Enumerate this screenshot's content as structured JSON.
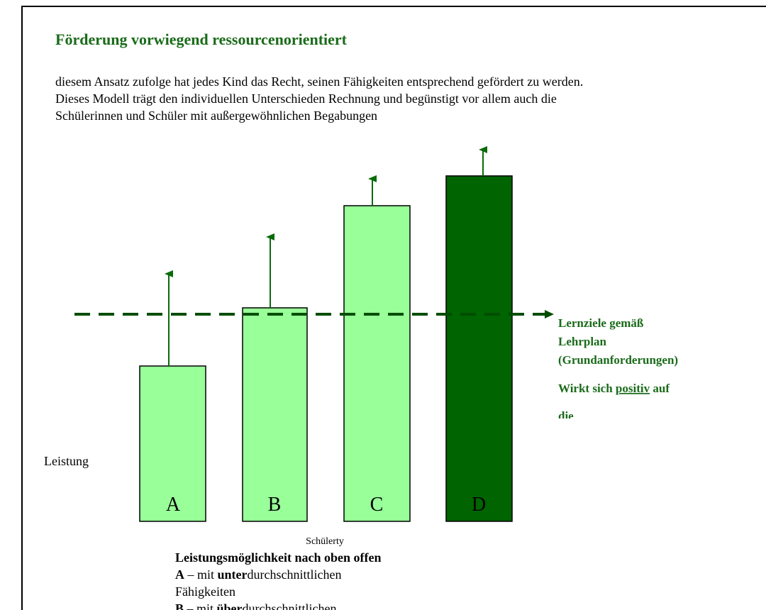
{
  "header": {
    "title": "Förderung vorwiegend ressourcenorientiert"
  },
  "intro": [
    "diesem Ansatz zufolge hat jedes Kind das Recht, seinen Fähigkeiten entsprechend gefördert zu werden.",
    "Dieses Modell trägt den individuellen Unterschieden Rechnung und begünstigt vor allem auch die",
    "Schülerinnen und Schüler mit außergewöhnlichen Begabungen"
  ],
  "diagram": {
    "bars": [
      {
        "label": "A"
      },
      {
        "label": "B"
      },
      {
        "label": "C"
      },
      {
        "label": "D"
      }
    ],
    "y_label": "Leistung",
    "x_label": "Schülerty",
    "line_label": [
      "Lernziele gemäß",
      "Lehrplan",
      "(Grundanforderungen)"
    ],
    "effect": {
      "before": "Wirkt sich",
      "emphasis": "positiv",
      "after": "auf",
      "next": "die"
    }
  },
  "legend": {
    "heading": "Leistungsmöglichkeit nach oben offen",
    "items": [
      {
        "letter": "A",
        "text1": "– mit ",
        "strong": "unter",
        "text2": "durchschnittlichen",
        "cont": "Fähigkeiten"
      },
      {
        "letter": "B",
        "text1": "– mit ",
        "strong": "über",
        "text2": "durchschnittlichen"
      }
    ]
  }
}
